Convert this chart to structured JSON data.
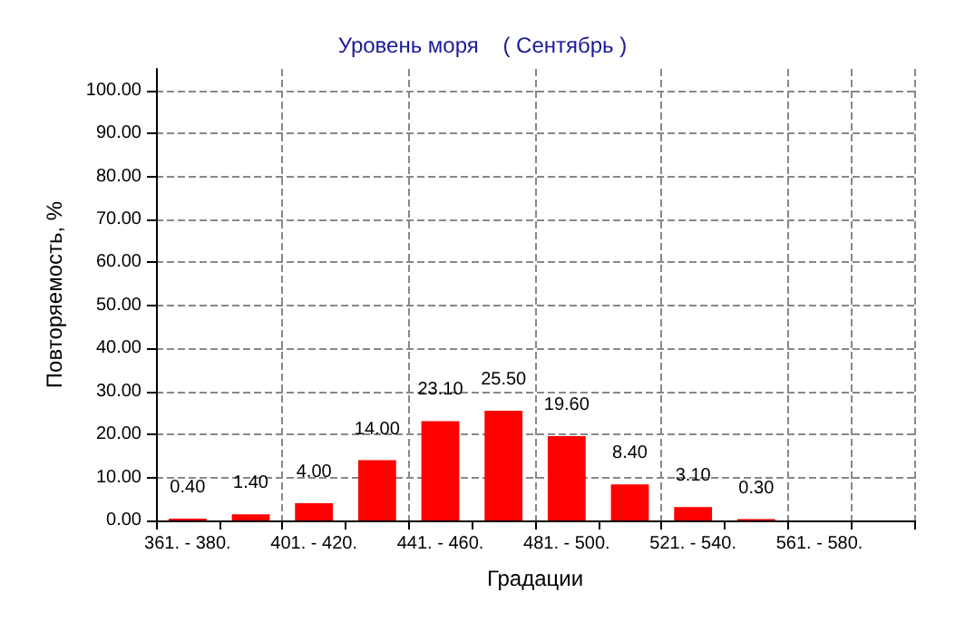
{
  "chart_data": {
    "type": "bar",
    "title": "Уровень моря    ( Сентябрь )",
    "xlabel": "Градации",
    "ylabel": "Повторяемость, %",
    "categories": [
      "361. - 380.",
      null,
      "401. - 420.",
      null,
      "441. - 460.",
      null,
      "481. - 500.",
      null,
      "521. - 540.",
      null,
      "561. - 580.",
      null
    ],
    "values": [
      0.4,
      1.4,
      4.0,
      14.0,
      23.1,
      25.5,
      19.6,
      8.4,
      3.1,
      0.3,
      null,
      null
    ],
    "value_labels": [
      "0.40",
      "1.40",
      "4.00",
      "14.00",
      "23.10",
      "25.50",
      "19.60",
      "8.40",
      "3.10",
      "0.30",
      null,
      null
    ],
    "color": "#ff0000",
    "ylim": [
      0,
      105
    ],
    "yticks": [
      {
        "value": 0,
        "label": "0.00"
      },
      {
        "value": 10,
        "label": "10.00"
      },
      {
        "value": 20,
        "label": "20.00"
      },
      {
        "value": 30,
        "label": "30.00"
      },
      {
        "value": 40,
        "label": "40.00"
      },
      {
        "value": 50,
        "label": "50.00"
      },
      {
        "value": 60,
        "label": "60.00"
      },
      {
        "value": 70,
        "label": "70.00"
      },
      {
        "value": 80,
        "label": "80.00"
      },
      {
        "value": 90,
        "label": "90.00"
      },
      {
        "value": 100,
        "label": "100.00"
      }
    ],
    "grid": true
  }
}
